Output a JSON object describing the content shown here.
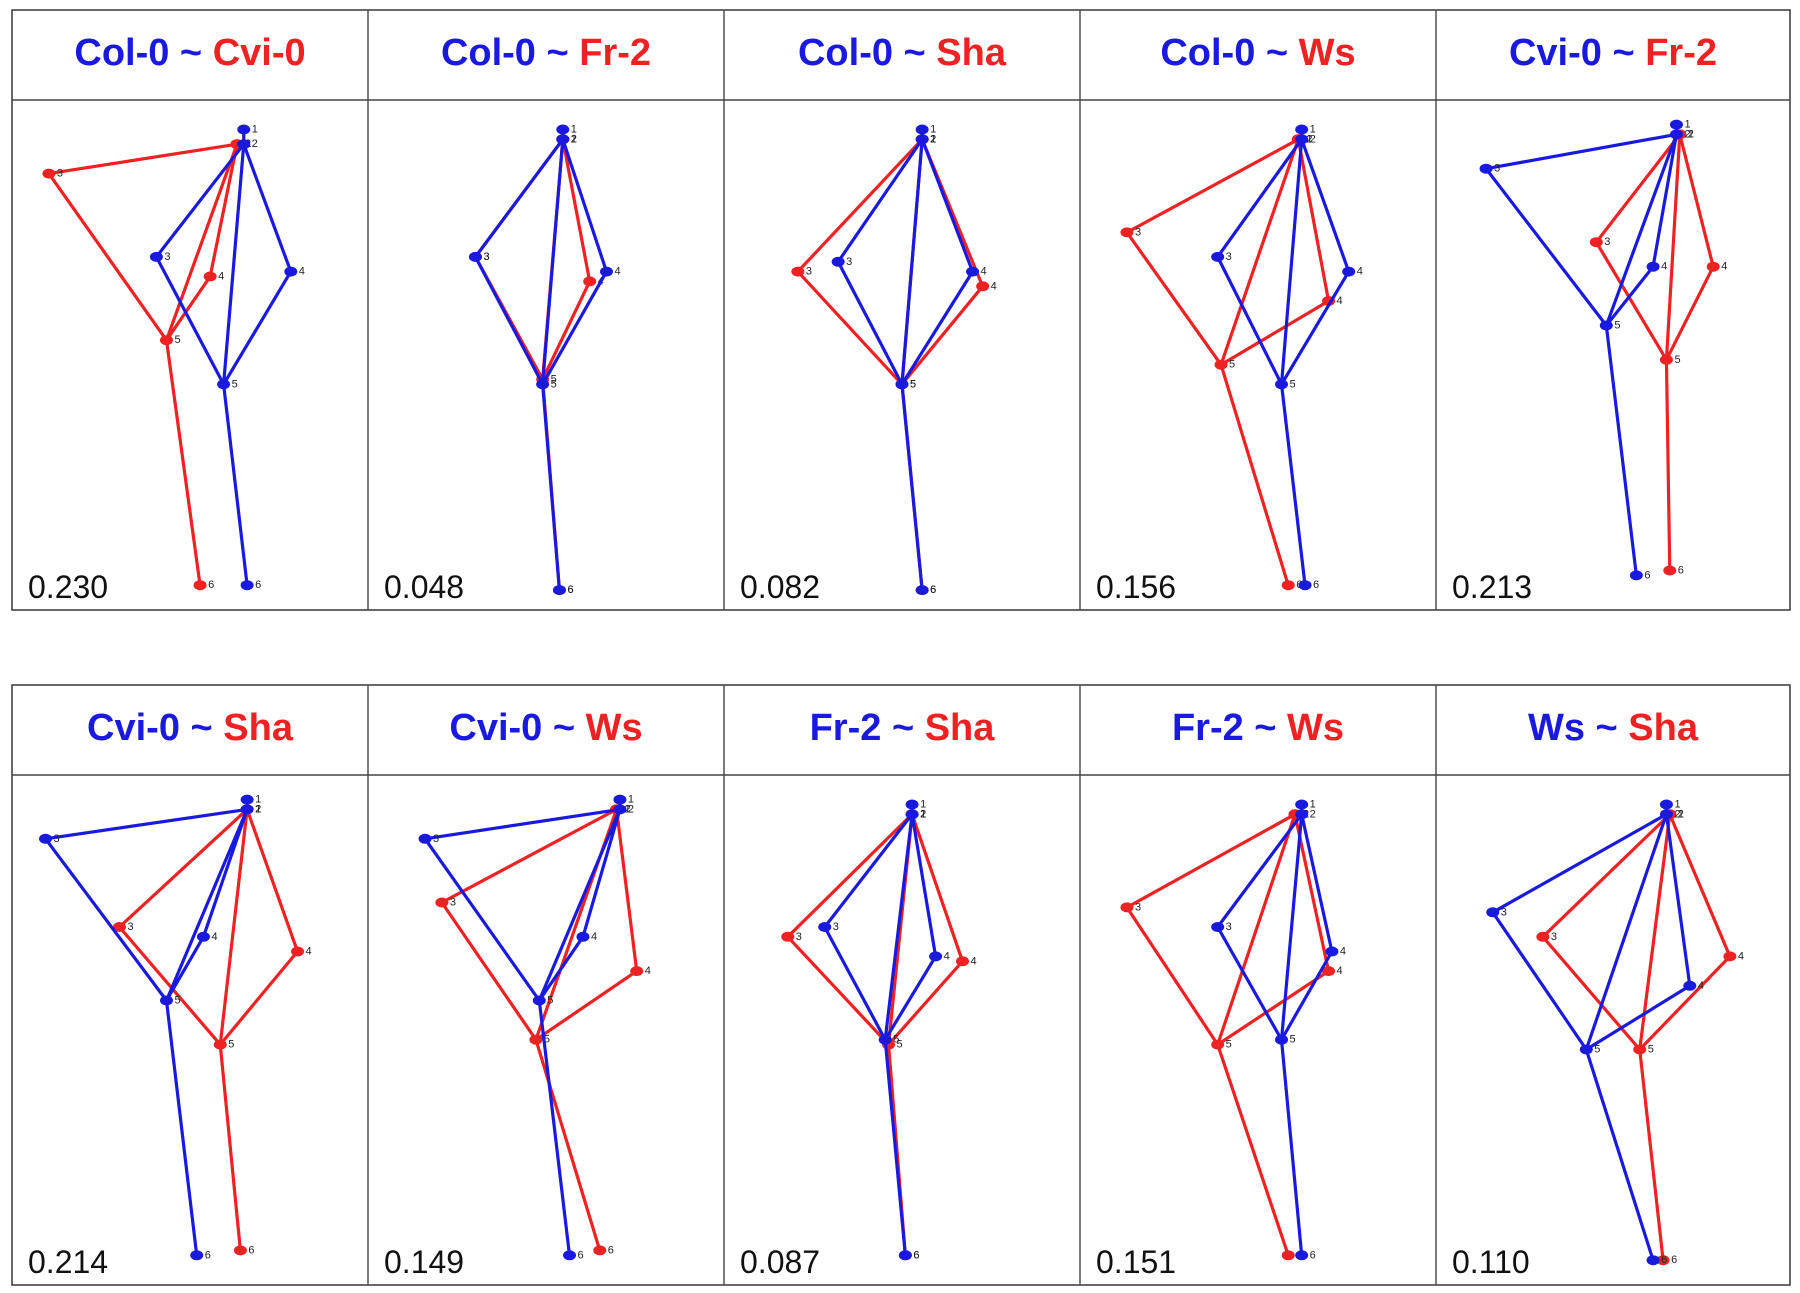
{
  "colors": {
    "first": "#1a1adf",
    "second": "#ee2222",
    "shared": "#111111",
    "grid": "#444444",
    "label": "#222222"
  },
  "landmark_labels": [
    "1",
    "2",
    "3",
    "4",
    "5",
    "6"
  ],
  "rows": [
    {
      "panels": [
        {
          "title_first": "Col-0",
          "title_sep": " ~ ",
          "title_second": "Cvi-0",
          "score": "0.230",
          "first": [
            [
              0.66,
              0.05
            ],
            [
              0.66,
              0.08
            ],
            [
              0.4,
              0.31
            ],
            [
              0.8,
              0.34
            ],
            [
              0.6,
              0.57
            ],
            [
              0.67,
              0.98
            ]
          ],
          "second": [
            [
              0.64,
              0.08
            ],
            [
              0.64,
              0.08
            ],
            [
              0.08,
              0.14
            ],
            [
              0.56,
              0.35
            ],
            [
              0.43,
              0.48
            ],
            [
              0.53,
              0.98
            ]
          ]
        },
        {
          "title_first": "Col-0",
          "title_sep": " ~ ",
          "title_second": "Fr-2",
          "score": "0.048",
          "first": [
            [
              0.55,
              0.05
            ],
            [
              0.55,
              0.07
            ],
            [
              0.29,
              0.31
            ],
            [
              0.68,
              0.34
            ],
            [
              0.49,
              0.57
            ],
            [
              0.54,
              0.99
            ]
          ],
          "second": [
            [
              0.55,
              0.07
            ],
            [
              0.55,
              0.07
            ],
            [
              0.29,
              0.31
            ],
            [
              0.63,
              0.36
            ],
            [
              0.49,
              0.56
            ],
            [
              0.54,
              0.99
            ]
          ]
        },
        {
          "title_first": "Col-0",
          "title_sep": " ~ ",
          "title_second": "Sha",
          "score": "0.082",
          "first": [
            [
              0.56,
              0.05
            ],
            [
              0.56,
              0.07
            ],
            [
              0.31,
              0.32
            ],
            [
              0.71,
              0.34
            ],
            [
              0.5,
              0.57
            ],
            [
              0.56,
              0.99
            ]
          ],
          "second": [
            [
              0.56,
              0.07
            ],
            [
              0.56,
              0.07
            ],
            [
              0.19,
              0.34
            ],
            [
              0.74,
              0.37
            ],
            [
              0.5,
              0.57
            ],
            [
              0.56,
              0.99
            ]
          ]
        },
        {
          "title_first": "Col-0",
          "title_sep": " ~ ",
          "title_second": "Ws",
          "score": "0.156",
          "first": [
            [
              0.63,
              0.05
            ],
            [
              0.63,
              0.07
            ],
            [
              0.38,
              0.31
            ],
            [
              0.77,
              0.34
            ],
            [
              0.57,
              0.57
            ],
            [
              0.64,
              0.98
            ]
          ],
          "second": [
            [
              0.62,
              0.07
            ],
            [
              0.62,
              0.07
            ],
            [
              0.11,
              0.26
            ],
            [
              0.71,
              0.4
            ],
            [
              0.39,
              0.53
            ],
            [
              0.59,
              0.98
            ]
          ]
        },
        {
          "title_first": "Cvi-0",
          "title_sep": " ~ ",
          "title_second": "Fr-2",
          "score": "0.213",
          "first": [
            [
              0.69,
              0.04
            ],
            [
              0.69,
              0.06
            ],
            [
              0.12,
              0.13
            ],
            [
              0.62,
              0.33
            ],
            [
              0.48,
              0.45
            ],
            [
              0.57,
              0.96
            ]
          ],
          "second": [
            [
              0.7,
              0.06
            ],
            [
              0.7,
              0.06
            ],
            [
              0.45,
              0.28
            ],
            [
              0.8,
              0.33
            ],
            [
              0.66,
              0.52
            ],
            [
              0.67,
              0.95
            ]
          ]
        }
      ]
    },
    {
      "panels": [
        {
          "title_first": "Cvi-0",
          "title_sep": " ~ ",
          "title_second": "Sha",
          "score": "0.214",
          "first": [
            [
              0.67,
              0.04
            ],
            [
              0.67,
              0.06
            ],
            [
              0.07,
              0.12
            ],
            [
              0.54,
              0.32
            ],
            [
              0.43,
              0.45
            ],
            [
              0.52,
              0.97
            ]
          ],
          "second": [
            [
              0.67,
              0.06
            ],
            [
              0.67,
              0.06
            ],
            [
              0.29,
              0.3
            ],
            [
              0.82,
              0.35
            ],
            [
              0.59,
              0.54
            ],
            [
              0.65,
              0.96
            ]
          ]
        },
        {
          "title_first": "Cvi-0",
          "title_sep": " ~ ",
          "title_second": "Ws",
          "score": "0.149",
          "first": [
            [
              0.72,
              0.04
            ],
            [
              0.72,
              0.06
            ],
            [
              0.14,
              0.12
            ],
            [
              0.61,
              0.32
            ],
            [
              0.48,
              0.45
            ],
            [
              0.57,
              0.97
            ]
          ],
          "second": [
            [
              0.71,
              0.06
            ],
            [
              0.71,
              0.06
            ],
            [
              0.19,
              0.25
            ],
            [
              0.77,
              0.39
            ],
            [
              0.47,
              0.53
            ],
            [
              0.66,
              0.96
            ]
          ]
        },
        {
          "title_first": "Fr-2",
          "title_sep": " ~ ",
          "title_second": "Sha",
          "score": "0.087",
          "first": [
            [
              0.53,
              0.05
            ],
            [
              0.53,
              0.07
            ],
            [
              0.27,
              0.3
            ],
            [
              0.6,
              0.36
            ],
            [
              0.45,
              0.53
            ],
            [
              0.51,
              0.97
            ]
          ],
          "second": [
            [
              0.53,
              0.07
            ],
            [
              0.53,
              0.07
            ],
            [
              0.16,
              0.32
            ],
            [
              0.68,
              0.37
            ],
            [
              0.46,
              0.54
            ],
            [
              0.51,
              0.97
            ]
          ]
        },
        {
          "title_first": "Fr-2",
          "title_sep": " ~ ",
          "title_second": "Ws",
          "score": "0.151",
          "first": [
            [
              0.63,
              0.05
            ],
            [
              0.63,
              0.07
            ],
            [
              0.38,
              0.3
            ],
            [
              0.72,
              0.35
            ],
            [
              0.57,
              0.53
            ],
            [
              0.63,
              0.97
            ]
          ],
          "second": [
            [
              0.61,
              0.07
            ],
            [
              0.61,
              0.07
            ],
            [
              0.11,
              0.26
            ],
            [
              0.71,
              0.39
            ],
            [
              0.38,
              0.54
            ],
            [
              0.59,
              0.97
            ]
          ]
        },
        {
          "title_first": "Ws",
          "title_sep": " ~ ",
          "title_second": "Sha",
          "score": "0.110",
          "first": [
            [
              0.66,
              0.05
            ],
            [
              0.66,
              0.07
            ],
            [
              0.14,
              0.27
            ],
            [
              0.73,
              0.42
            ],
            [
              0.42,
              0.55
            ],
            [
              0.62,
              0.98
            ]
          ],
          "second": [
            [
              0.67,
              0.07
            ],
            [
              0.67,
              0.07
            ],
            [
              0.29,
              0.32
            ],
            [
              0.85,
              0.36
            ],
            [
              0.58,
              0.55
            ],
            [
              0.65,
              0.98
            ]
          ]
        }
      ]
    }
  ]
}
